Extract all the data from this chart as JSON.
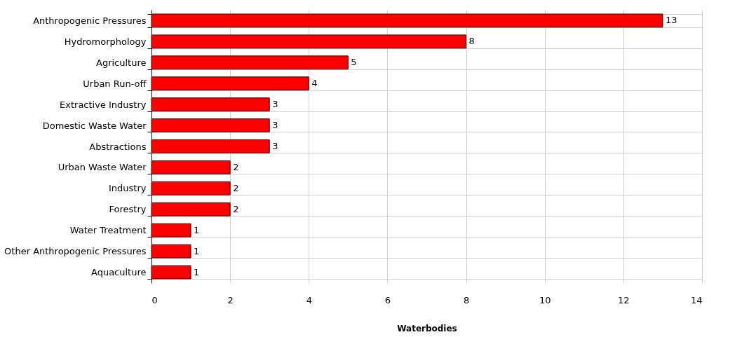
{
  "chart_data": {
    "type": "bar",
    "orientation": "horizontal",
    "xlabel": "Waterbodies",
    "categories": [
      "Anthropogenic Pressures",
      "Hydromorphology",
      "Agriculture",
      "Urban Run-off",
      "Extractive Industry",
      "Domestic Waste Water",
      "Abstractions",
      "Urban Waste Water",
      "Industry",
      "Forestry",
      "Water Treatment",
      "Other Anthropogenic Pressures",
      "Aquaculture"
    ],
    "values": [
      13,
      8,
      5,
      4,
      3,
      3,
      3,
      2,
      2,
      2,
      1,
      1,
      1
    ],
    "color": "#ff0000",
    "xlim": [
      0,
      14
    ],
    "xticks": [
      0,
      2,
      4,
      6,
      8,
      10,
      12,
      14
    ],
    "grid": true,
    "data_labels": true
  }
}
